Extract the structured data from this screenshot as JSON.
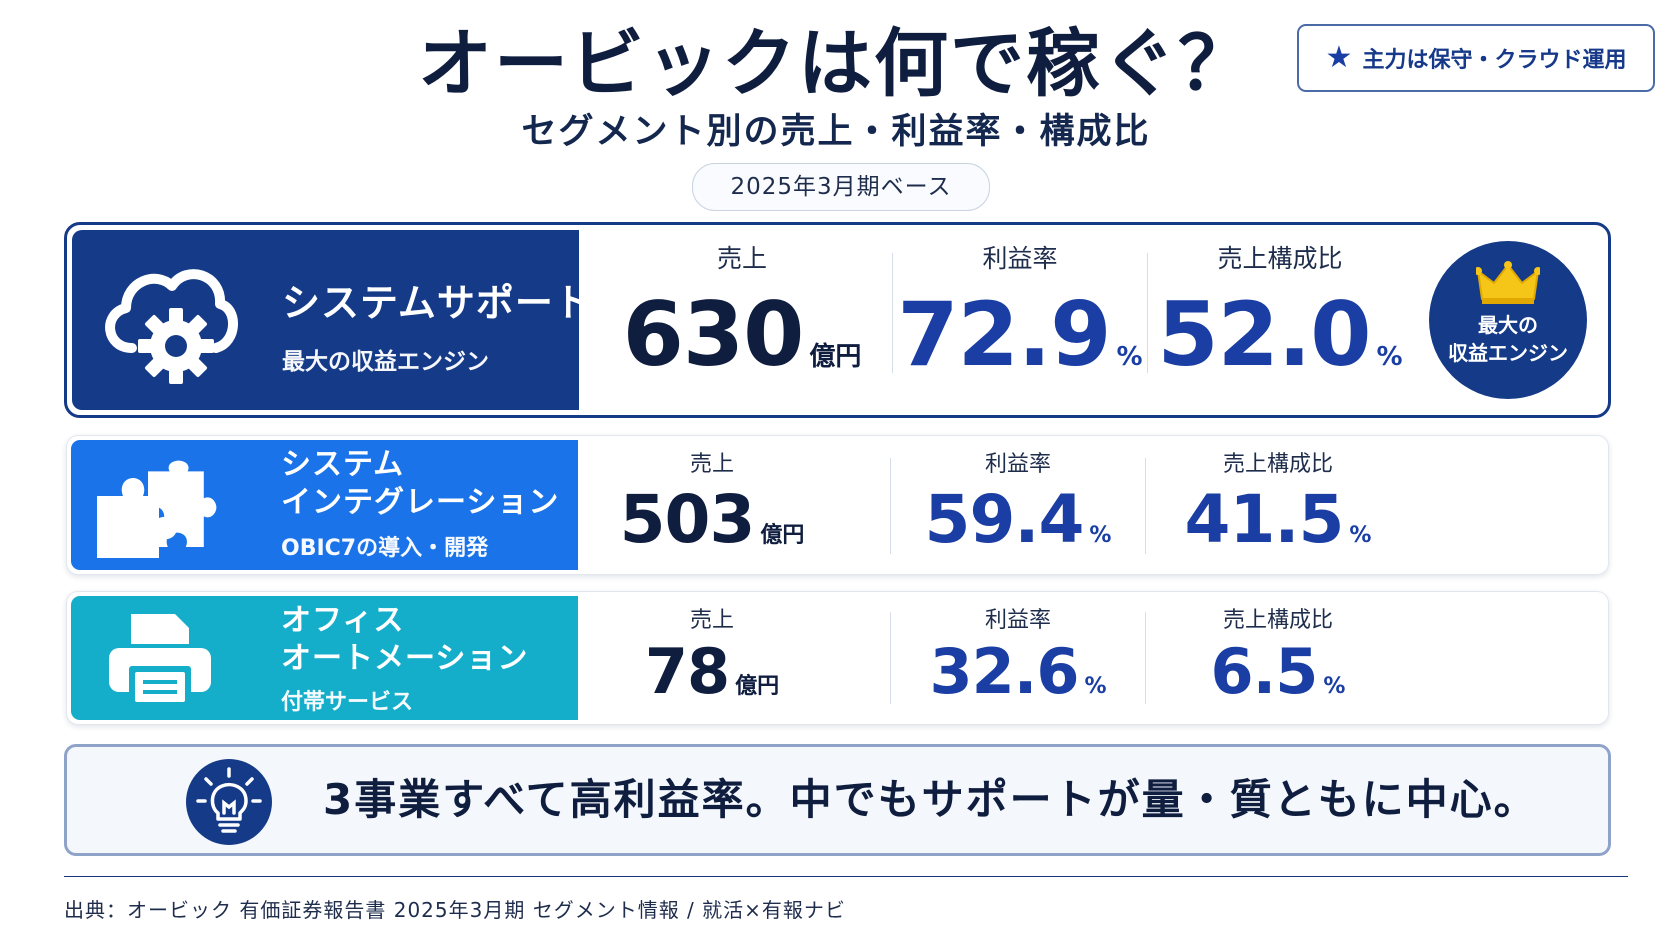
{
  "header": {
    "title": "オービックは何で稼ぐ？",
    "subtitle": "セグメント別の売上・利益率・構成比",
    "period": "2025年3月期ベース",
    "badge": {
      "icon": "star-icon",
      "label": "主力は保守・クラウド運用"
    }
  },
  "labels": {
    "sales": "売上",
    "margin": "利益率",
    "share": "売上構成比",
    "sales_unit": "億円",
    "percent_unit": "%"
  },
  "segments": [
    {
      "name": "システムサポート",
      "description": "最大の収益エンジン",
      "icon": "cloud-gear-icon",
      "color": "#143a88",
      "sales": "630",
      "margin": "72.9",
      "share": "52.0",
      "badge": {
        "icon": "crown-icon",
        "line1": "最大の",
        "line2": "収益エンジン"
      }
    },
    {
      "name_line1": "システム",
      "name_line2": "インテグレーション",
      "description": "OBIC7の導入・開発",
      "icon": "puzzle-icon",
      "color": "#1a73e8",
      "sales": "503",
      "margin": "59.4",
      "share": "41.5"
    },
    {
      "name_line1": "オフィス",
      "name_line2": "オートメーション",
      "description": "付帯サービス",
      "icon": "printer-icon",
      "color": "#14aecb",
      "sales": "78",
      "margin": "32.6",
      "share": "6.5"
    }
  ],
  "summary": {
    "icon": "lightbulb-icon",
    "message": "3事業すべて高利益率。中でもサポートが量・質ともに中心。"
  },
  "footer": {
    "source": "出典：オービック 有価証券報告書 2025年3月期 セグメント情報 / 就活×有報ナビ"
  }
}
